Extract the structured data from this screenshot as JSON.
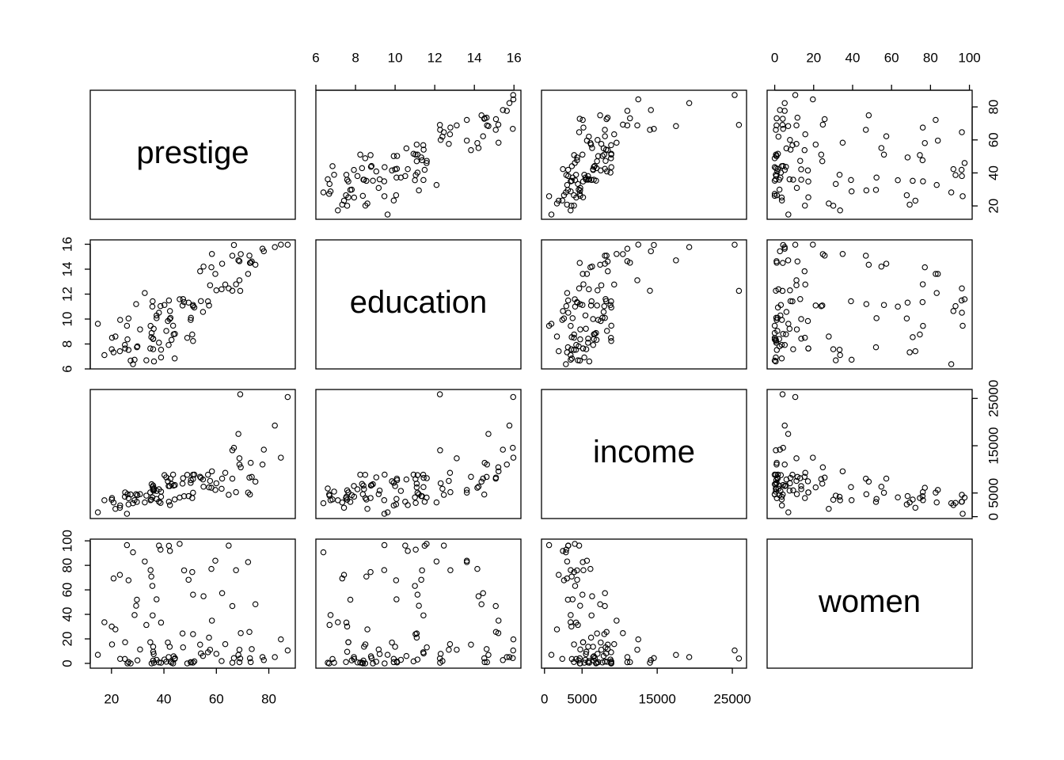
{
  "chart_data": {
    "type": "scatter-matrix",
    "variables": [
      {
        "name": "prestige",
        "lim": [
          11.9,
          90.1
        ],
        "ticks": [
          20,
          40,
          60,
          80
        ],
        "values": [
          68.8,
          69.1,
          63.4,
          56.8,
          73.5,
          77.6,
          72.6,
          78.1,
          73.1,
          68.8,
          62.0,
          60.0,
          53.8,
          62.2,
          74.9,
          55.1,
          82.3,
          58.1,
          58.3,
          72.8,
          84.6,
          59.6,
          66.1,
          87.2,
          66.7,
          68.4,
          64.7,
          34.9,
          72.1,
          69.3,
          67.5,
          57.2,
          57.6,
          54.1,
          46.0,
          41.9,
          49.4,
          42.3,
          47.7,
          30.9,
          32.7,
          38.7,
          36.1,
          37.2,
          38.1,
          29.4,
          51.1,
          35.7,
          35.6,
          41.5,
          40.2,
          26.5,
          14.8,
          23.3,
          47.3,
          47.1,
          51.1,
          43.5,
          51.6,
          29.7,
          20.2,
          54.9,
          25.9,
          20.8,
          17.3,
          20.1,
          44.1,
          21.5,
          35.3,
          38.9,
          25.2,
          34.8,
          23.2,
          33.3,
          28.8,
          42.5,
          44.2,
          35.9,
          41.8,
          35.9,
          43.7,
          50.8,
          37.2,
          28.2,
          38.1,
          50.3,
          27.3,
          40.9,
          50.2,
          51.1,
          38.9,
          36.2,
          29.9,
          42.9,
          26.5,
          66.1,
          48.9,
          35.9,
          25.1,
          26.1,
          42.2,
          35.2
        ]
      },
      {
        "name": "education",
        "lim": [
          6.0,
          16.35
        ],
        "ticks": [
          6,
          8,
          10,
          12,
          14,
          16
        ],
        "values": [
          13.11,
          12.26,
          12.77,
          11.42,
          14.62,
          15.64,
          15.09,
          15.44,
          14.52,
          14.64,
          12.39,
          12.3,
          13.83,
          14.44,
          14.36,
          14.21,
          15.77,
          14.15,
          15.22,
          14.5,
          15.97,
          13.62,
          15.08,
          15.96,
          15.94,
          14.71,
          12.46,
          9.45,
          13.62,
          15.21,
          12.79,
          11.09,
          12.71,
          11.44,
          11.59,
          11.49,
          11.32,
          10.64,
          11.36,
          9.17,
          12.09,
          11.04,
          9.22,
          10.07,
          10.51,
          11.2,
          11.13,
          11.43,
          11.0,
          9.84,
          11.13,
          10.05,
          9.62,
          9.93,
          11.6,
          11.09,
          11.03,
          9.47,
          10.93,
          7.74,
          8.5,
          10.57,
          9.46,
          7.33,
          7.11,
          7.58,
          6.84,
          8.6,
          8.88,
          7.54,
          7.64,
          7.64,
          7.42,
          6.69,
          6.74,
          10.09,
          8.81,
          8.4,
          7.92,
          8.43,
          8.78,
          8.76,
          10.29,
          6.38,
          8.1,
          10.1,
          6.67,
          9.05,
          9.93,
          8.24,
          6.92,
          6.6,
          7.81,
          8.33,
          7.52,
          12.27,
          8.49,
          7.58,
          7.93,
          8.37,
          10.0,
          8.55
        ]
      },
      {
        "name": "income",
        "lim": [
          -400,
          26890
        ],
        "ticks": [
          0,
          5000,
          15000,
          25000
        ],
        "values": [
          12351,
          25879,
          9271,
          8865,
          8403,
          11030,
          8258,
          14163,
          11377,
          11023,
          5902,
          7059,
          8425,
          8049,
          7405,
          6336,
          19263,
          6112,
          9593,
          4686,
          12480,
          5648,
          8034,
          25308,
          14558,
          17498,
          4614,
          3485,
          5092,
          10432,
          5180,
          6197,
          7562,
          8206,
          4036,
          3148,
          4348,
          2448,
          4330,
          4761,
          3016,
          2901,
          5511,
          3739,
          3161,
          4741,
          5052,
          6259,
          4075,
          7482,
          8780,
          2594,
          918,
          2370,
          8131,
          6992,
          7956,
          8895,
          8891,
          3116,
          3930,
          7869,
          611,
          3000,
          3472,
          3582,
          3643,
          1656,
          6860,
          4199,
          5134,
          5134,
          1890,
          4443,
          3485,
          8043,
          6686,
          6565,
          6477,
          5811,
          6573,
          3942,
          5449,
          2847,
          5795,
          7716,
          4696,
          8316,
          7147,
          8880,
          5299,
          5959,
          4549,
          6928,
          3910,
          14032,
          8845,
          5562,
          4224,
          4753,
          6462,
          3617
        ]
      },
      {
        "name": "women",
        "lim": [
          -3.9,
          101.4
        ],
        "ticks": [
          0,
          20,
          40,
          60,
          80,
          100
        ],
        "values": [
          11.16,
          4.02,
          15.7,
          9.11,
          11.68,
          5.13,
          25.65,
          2.69,
          1.03,
          0.94,
          1.91,
          7.83,
          15.33,
          57.31,
          48.28,
          54.77,
          5.13,
          77.1,
          34.89,
          4.14,
          19.59,
          83.78,
          46.8,
          10.56,
          4.32,
          6.91,
          96.12,
          76.14,
          82.66,
          24.71,
          76.04,
          21.03,
          11.15,
          8.13,
          97.51,
          95.97,
          68.24,
          91.76,
          75.92,
          11.37,
          83.19,
          92.86,
          7.62,
          52.27,
          96.14,
          47.06,
          56.1,
          39.17,
          63.23,
          17.04,
          3.16,
          67.82,
          7.0,
          3.69,
          13.09,
          24.44,
          23.88,
          0.0,
          1.65,
          52.0,
          15.51,
          6.01,
          96.53,
          69.31,
          33.57,
          30.08,
          3.6,
          27.75,
          0.0,
          33.3,
          17.26,
          17.26,
          72.24,
          31.36,
          39.48,
          1.5,
          4.28,
          2.3,
          5.17,
          13.62,
          5.78,
          74.54,
          2.92,
          90.67,
          0.81,
          0.78,
          0.0,
          1.34,
          0.99,
          0.65,
          0.56,
          0.52,
          2.46,
          0.61,
          1.09,
          0.58,
          0.0,
          9.47,
          3.59,
          0.0,
          13.58,
          70.87
        ]
      }
    ]
  }
}
